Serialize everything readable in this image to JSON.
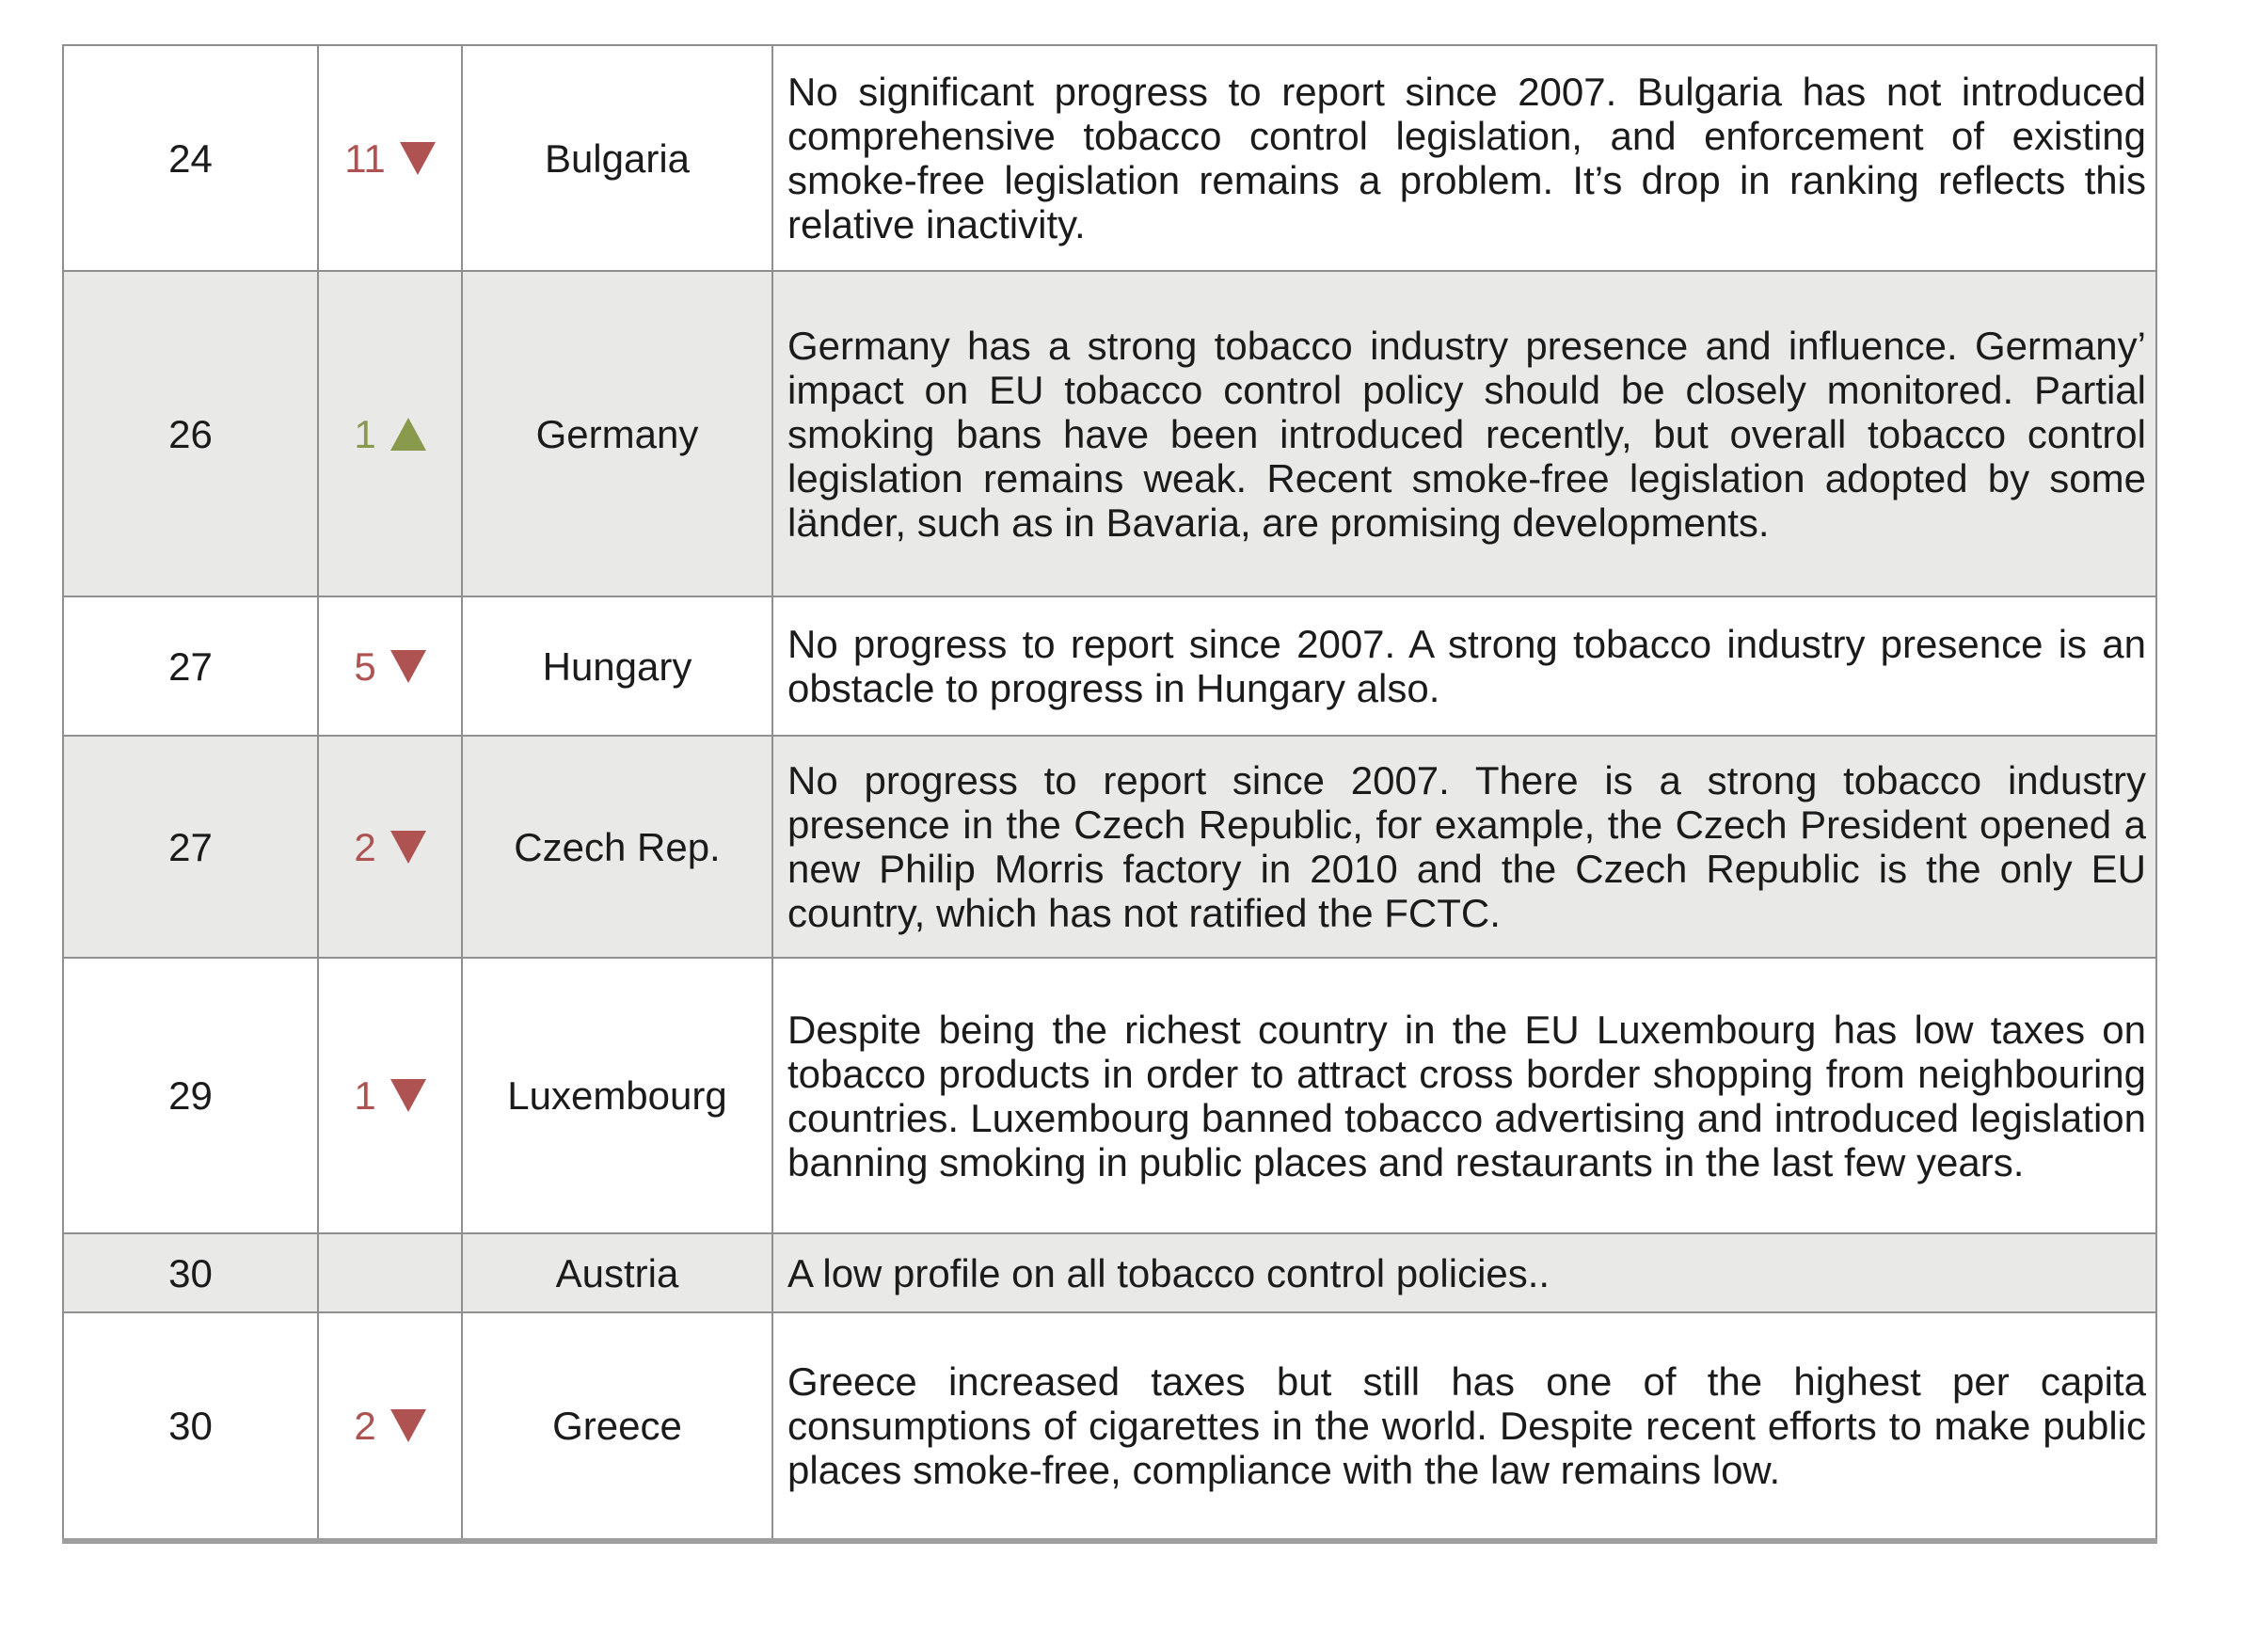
{
  "table": {
    "description": "Country ranking table with rank, change since previous ranking, country name and commentary",
    "colors": {
      "down": "#ae5252",
      "up": "#8a9a4d",
      "shaded_row": "#e9e9e8",
      "border": "#8f8f8f"
    },
    "icons": {
      "down": "down-triangle-icon",
      "up": "up-triangle-icon"
    },
    "rows": [
      {
        "rank": "24",
        "change_value": "11",
        "change_dir": "down",
        "country": "Bulgaria",
        "shaded": false,
        "comment": "No significant progress to report since 2007. Bulgaria has not introduced comprehensive tobacco control legislation, and enforcement of existing smoke-free legislation remains a problem. It’s drop in ranking reflects this relative inactivity."
      },
      {
        "rank": "26",
        "change_value": "1",
        "change_dir": "up",
        "country": "Germany",
        "shaded": true,
        "comment": "Germany has a strong tobacco industry presence and influence. Germany’ impact on EU tobacco control policy should be closely monitored. Partial smoking bans have been introduced recently, but overall tobacco control legislation remains weak. Recent smoke-free legislation adopted by some länder, such as in Bavaria, are promising developments."
      },
      {
        "rank": "27",
        "change_value": "5",
        "change_dir": "down",
        "country": "Hungary",
        "shaded": false,
        "comment": "No progress to report since 2007. A strong tobacco industry presence is an obstacle to progress in Hungary also."
      },
      {
        "rank": "27",
        "change_value": "2",
        "change_dir": "down",
        "country": "Czech Rep.",
        "shaded": true,
        "comment": "No progress to report since 2007. There is a strong tobacco industry presence in the Czech Republic, for example, the Czech President opened a new Philip Morris factory in 2010 and the Czech Republic is the only EU country, which has not ratified the FCTC."
      },
      {
        "rank": "29",
        "change_value": "1",
        "change_dir": "down",
        "country": "Luxembourg",
        "shaded": false,
        "comment": "Despite being the richest country in the EU Luxembourg has low taxes on tobacco products in order to attract cross border shopping from neighbouring countries. Luxembourg banned tobacco advertising and introduced legislation banning smoking in public places and restaurants in the last few years."
      },
      {
        "rank": "30",
        "change_value": "",
        "change_dir": "none",
        "country": "Austria",
        "shaded": true,
        "comment": "A low profile on all tobacco control policies.."
      },
      {
        "rank": "30",
        "change_value": "2",
        "change_dir": "down",
        "country": "Greece",
        "shaded": false,
        "comment": "Greece increased taxes but still has one of the highest per capita consumptions of cigarettes in the world. Despite recent efforts to make public places smoke-free, compliance with the law remains low."
      }
    ]
  }
}
